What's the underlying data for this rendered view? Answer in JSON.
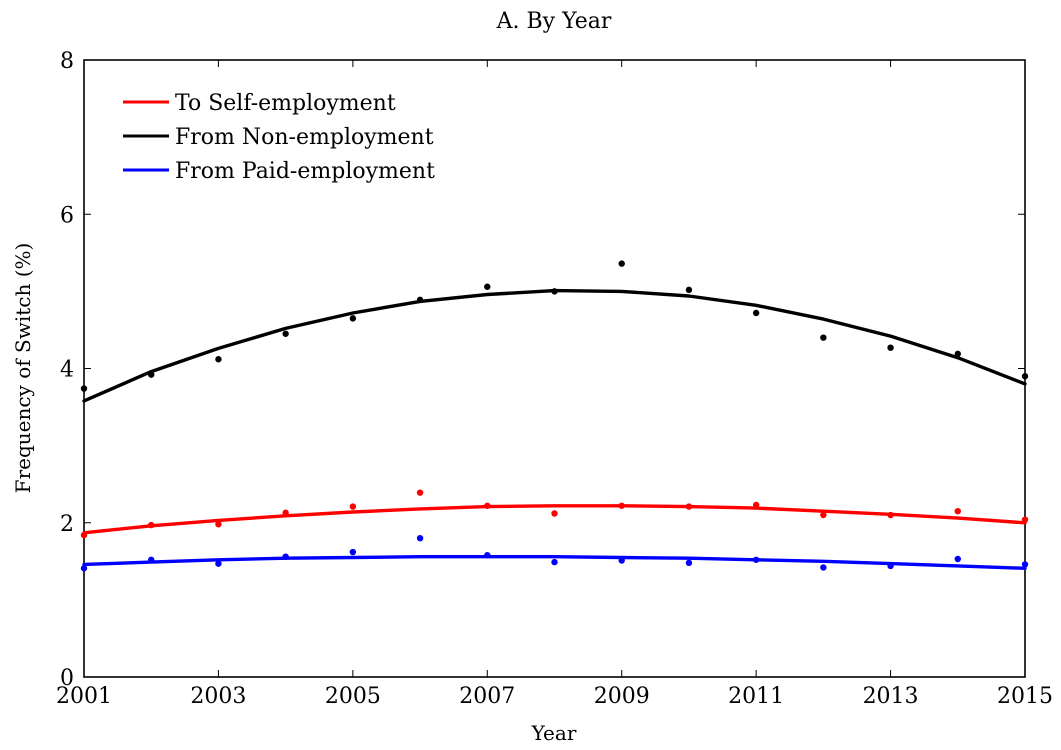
{
  "chart_data": {
    "type": "scatter",
    "title": "A. By Year",
    "xlabel": "Year",
    "ylabel": "Frequency of Switch (%)",
    "xlim": [
      2001,
      2015
    ],
    "ylim": [
      0,
      8
    ],
    "xticks": [
      2001,
      2003,
      2005,
      2007,
      2009,
      2011,
      2013,
      2015
    ],
    "yticks": [
      0,
      2,
      4,
      6,
      8
    ],
    "x": [
      2001,
      2002,
      2003,
      2004,
      2005,
      2006,
      2007,
      2008,
      2009,
      2010,
      2011,
      2012,
      2013,
      2014,
      2015
    ],
    "legend_position": "top-left",
    "grid": false,
    "series": [
      {
        "name": "To Self-employment",
        "color": "#ff0000",
        "points": [
          1.84,
          1.97,
          1.98,
          2.13,
          2.21,
          2.39,
          2.22,
          2.12,
          2.22,
          2.21,
          2.23,
          2.1,
          2.1,
          2.15,
          2.04
        ],
        "fit": [
          1.87,
          1.96,
          2.03,
          2.09,
          2.14,
          2.18,
          2.21,
          2.22,
          2.22,
          2.21,
          2.19,
          2.15,
          2.11,
          2.06,
          2.0
        ]
      },
      {
        "name": "From Non-employment",
        "color": "#000000",
        "points": [
          3.74,
          3.92,
          4.12,
          4.45,
          4.65,
          4.89,
          5.06,
          5.0,
          5.36,
          5.02,
          4.72,
          4.4,
          4.27,
          4.19,
          3.9
        ],
        "fit": [
          3.58,
          3.96,
          4.26,
          4.52,
          4.72,
          4.87,
          4.96,
          5.01,
          5.0,
          4.94,
          4.82,
          4.64,
          4.42,
          4.14,
          3.8
        ]
      },
      {
        "name": "From Paid-employment",
        "color": "#0000ff",
        "points": [
          1.41,
          1.52,
          1.47,
          1.56,
          1.62,
          1.8,
          1.58,
          1.49,
          1.51,
          1.48,
          1.52,
          1.42,
          1.44,
          1.53,
          1.46
        ],
        "fit": [
          1.46,
          1.49,
          1.52,
          1.54,
          1.55,
          1.56,
          1.56,
          1.56,
          1.55,
          1.54,
          1.52,
          1.5,
          1.47,
          1.44,
          1.41
        ]
      }
    ]
  }
}
